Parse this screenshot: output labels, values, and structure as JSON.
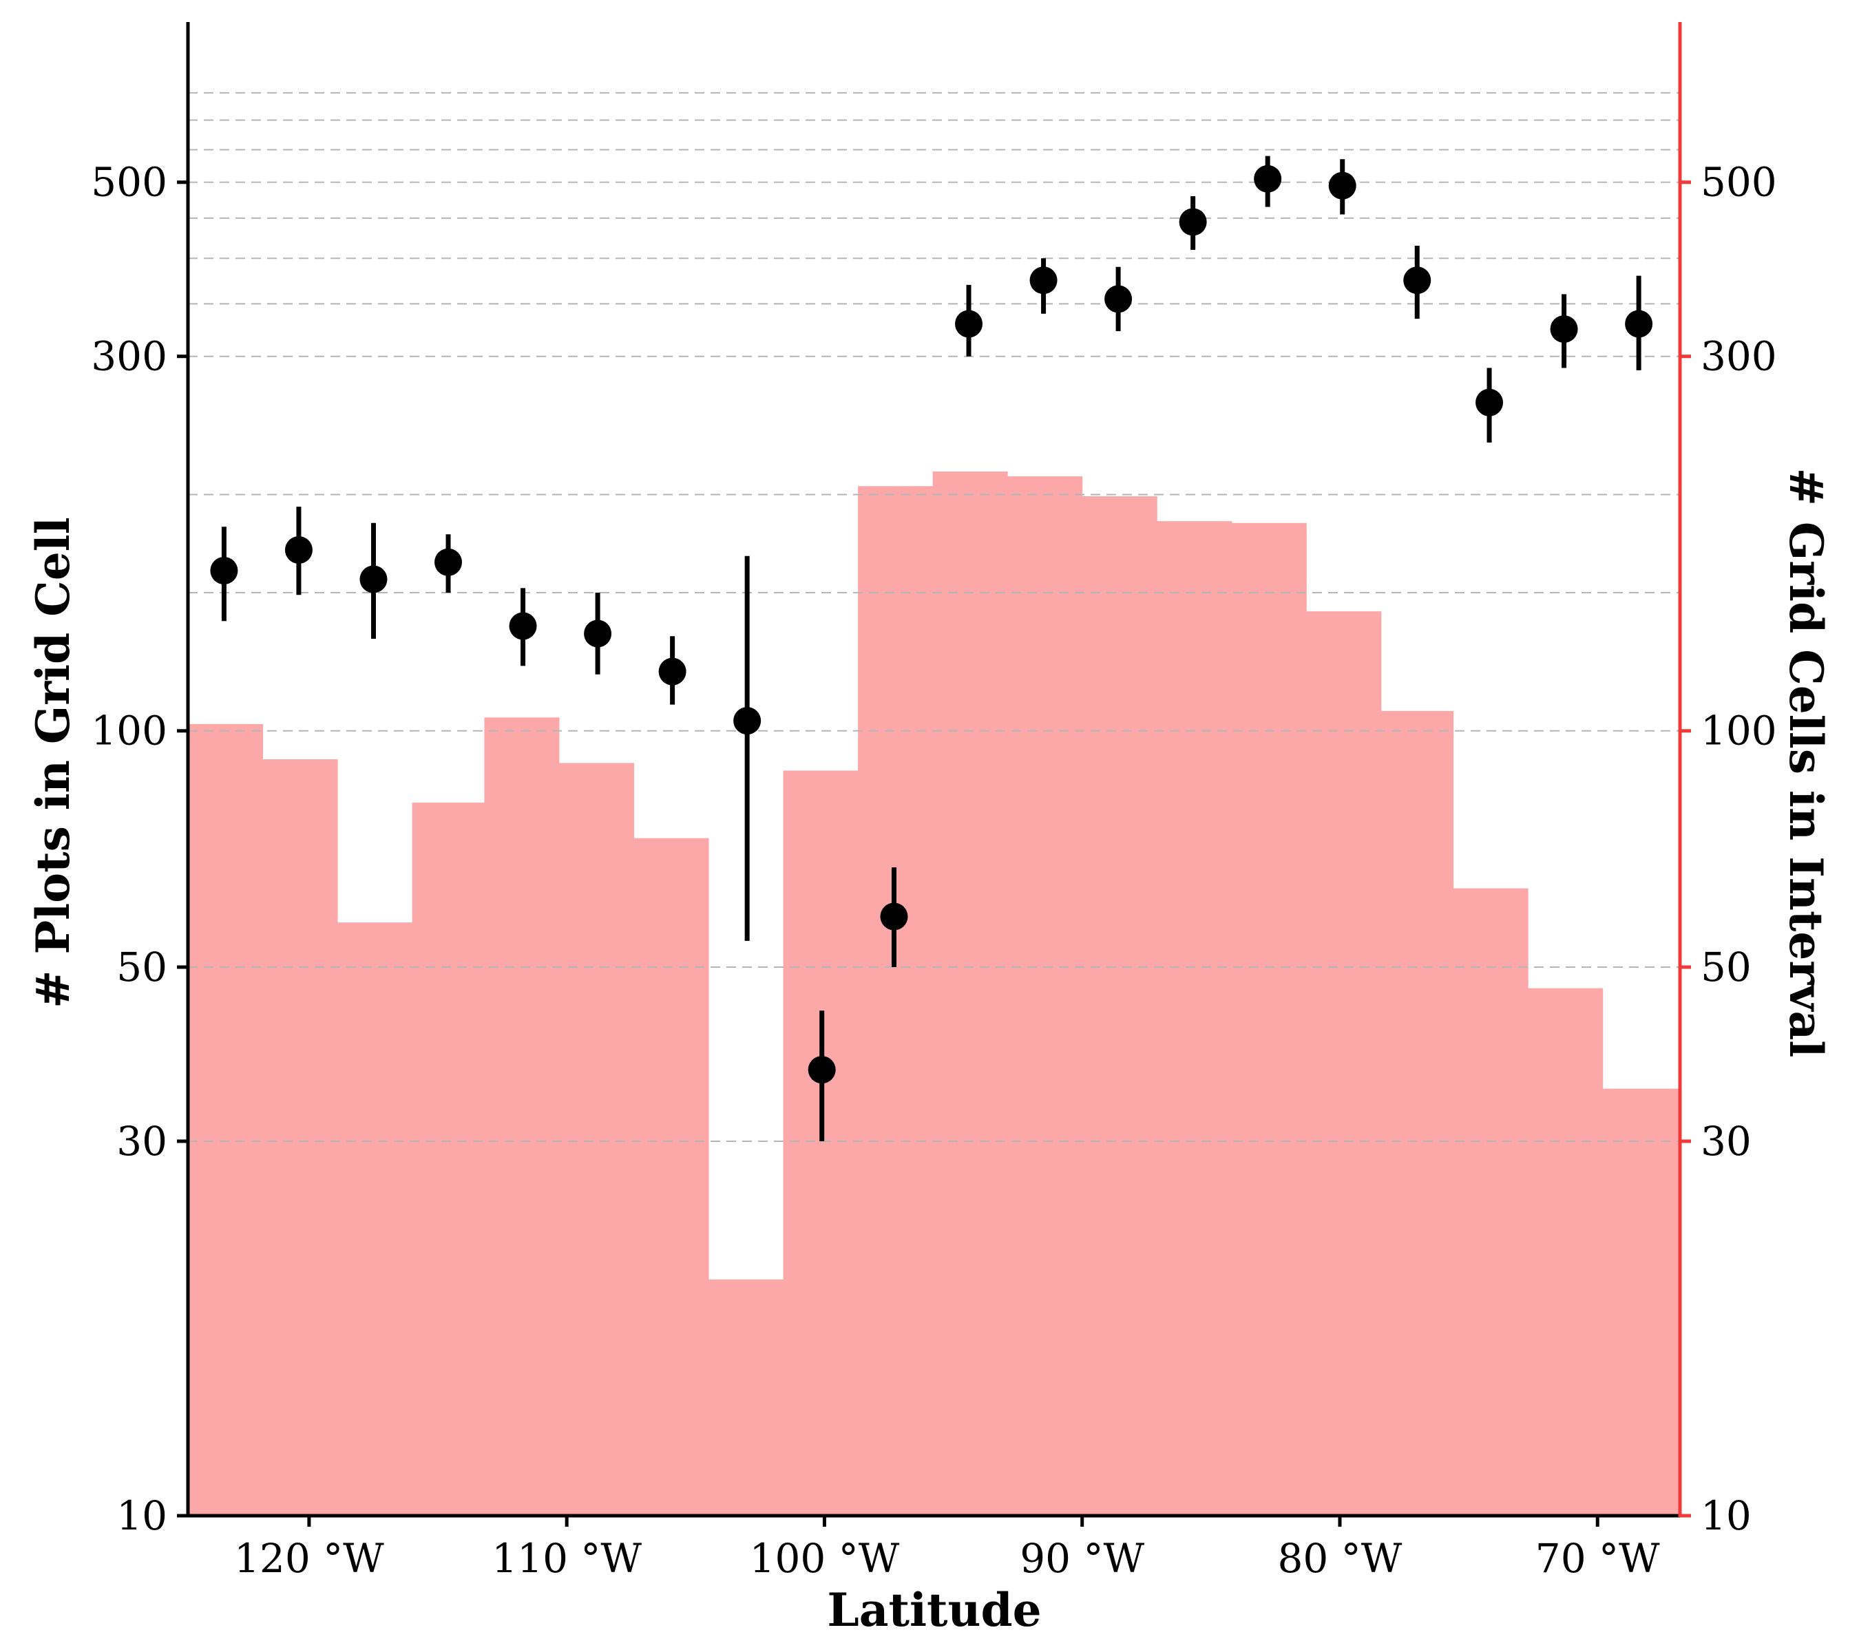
{
  "chart_data": {
    "type": "bar",
    "xlabel": "Latitude",
    "ylabel_left": "# Plots in Grid Cell",
    "ylabel_right": "# Grid Cells in Interval",
    "y_scale": "log",
    "ylim": [
      10,
      800
    ],
    "xlim": [
      -124.7,
      -66.8
    ],
    "x_ticks": [
      {
        "value": -120,
        "label": "120 °W"
      },
      {
        "value": -110,
        "label": "110 °W"
      },
      {
        "value": -100,
        "label": "100 °W"
      },
      {
        "value": -90,
        "label": "90 °W"
      },
      {
        "value": -80,
        "label": "80 °W"
      },
      {
        "value": -70,
        "label": "70 °W"
      }
    ],
    "y_ticks_left": [
      {
        "value": 10,
        "label": "10"
      },
      {
        "value": 30,
        "label": "30"
      },
      {
        "value": 50,
        "label": "50"
      },
      {
        "value": 100,
        "label": "100"
      },
      {
        "value": 300,
        "label": "300"
      },
      {
        "value": 500,
        "label": "500"
      }
    ],
    "y_ticks_right": [
      {
        "value": 10,
        "label": "10"
      },
      {
        "value": 30,
        "label": "30"
      },
      {
        "value": 50,
        "label": "50"
      },
      {
        "value": 100,
        "label": "100"
      },
      {
        "value": 300,
        "label": "300"
      },
      {
        "value": 500,
        "label": "500"
      }
    ],
    "gridlines": [
      30,
      50,
      100,
      150,
      200,
      300,
      350,
      400,
      450,
      500,
      550,
      600,
      650
    ],
    "grid": "dashed horizontal",
    "bar_color": "#fca8a9",
    "right_axis_color": "#f03a3a",
    "point_color": "#000000",
    "histogram": [
      {
        "x0": -124.7,
        "x1": -121.8,
        "value": 102
      },
      {
        "x0": -121.8,
        "x1": -118.9,
        "value": 92
      },
      {
        "x0": -118.9,
        "x1": -116.0,
        "value": 57
      },
      {
        "x0": -116.0,
        "x1": -113.2,
        "value": 81
      },
      {
        "x0": -113.2,
        "x1": -110.3,
        "value": 104
      },
      {
        "x0": -110.3,
        "x1": -107.4,
        "value": 91
      },
      {
        "x0": -107.4,
        "x1": -104.5,
        "value": 73
      },
      {
        "x0": -104.5,
        "x1": -101.6,
        "value": 20
      },
      {
        "x0": -101.6,
        "x1": -98.7,
        "value": 89
      },
      {
        "x0": -98.7,
        "x1": -95.8,
        "value": 205
      },
      {
        "x0": -95.8,
        "x1": -92.9,
        "value": 214
      },
      {
        "x0": -92.9,
        "x1": -90.0,
        "value": 211
      },
      {
        "x0": -90.0,
        "x1": -87.1,
        "value": 199
      },
      {
        "x0": -87.1,
        "x1": -84.2,
        "value": 185
      },
      {
        "x0": -84.2,
        "x1": -81.3,
        "value": 184
      },
      {
        "x0": -81.3,
        "x1": -78.4,
        "value": 142
      },
      {
        "x0": -78.4,
        "x1": -75.6,
        "value": 106
      },
      {
        "x0": -75.6,
        "x1": -72.7,
        "value": 63
      },
      {
        "x0": -72.7,
        "x1": -69.8,
        "value": 47
      },
      {
        "x0": -69.8,
        "x1": -66.8,
        "value": 35
      }
    ],
    "points": [
      {
        "x": -123.3,
        "y": 160,
        "lo": 138,
        "hi": 182
      },
      {
        "x": -120.4,
        "y": 170,
        "lo": 149,
        "hi": 193
      },
      {
        "x": -117.5,
        "y": 156,
        "lo": 131,
        "hi": 184
      },
      {
        "x": -114.6,
        "y": 164,
        "lo": 150,
        "hi": 178
      },
      {
        "x": -111.7,
        "y": 136,
        "lo": 121,
        "hi": 152
      },
      {
        "x": -108.8,
        "y": 133,
        "lo": 118,
        "hi": 150
      },
      {
        "x": -105.9,
        "y": 119,
        "lo": 108,
        "hi": 132
      },
      {
        "x": -103.0,
        "y": 103,
        "lo": 54,
        "hi": 167
      },
      {
        "x": -100.1,
        "y": 37,
        "lo": 30,
        "hi": 44
      },
      {
        "x": -97.3,
        "y": 58,
        "lo": 50,
        "hi": 67
      },
      {
        "x": -94.4,
        "y": 330,
        "lo": 300,
        "hi": 370
      },
      {
        "x": -91.5,
        "y": 375,
        "lo": 340,
        "hi": 400
      },
      {
        "x": -88.6,
        "y": 355,
        "lo": 323,
        "hi": 390
      },
      {
        "x": -85.7,
        "y": 445,
        "lo": 410,
        "hi": 480
      },
      {
        "x": -82.8,
        "y": 505,
        "lo": 465,
        "hi": 540
      },
      {
        "x": -79.9,
        "y": 495,
        "lo": 455,
        "hi": 535
      },
      {
        "x": -77.0,
        "y": 375,
        "lo": 335,
        "hi": 415
      },
      {
        "x": -74.2,
        "y": 262,
        "lo": 233,
        "hi": 290
      },
      {
        "x": -71.3,
        "y": 325,
        "lo": 290,
        "hi": 360
      },
      {
        "x": -68.4,
        "y": 330,
        "lo": 288,
        "hi": 380
      }
    ]
  }
}
